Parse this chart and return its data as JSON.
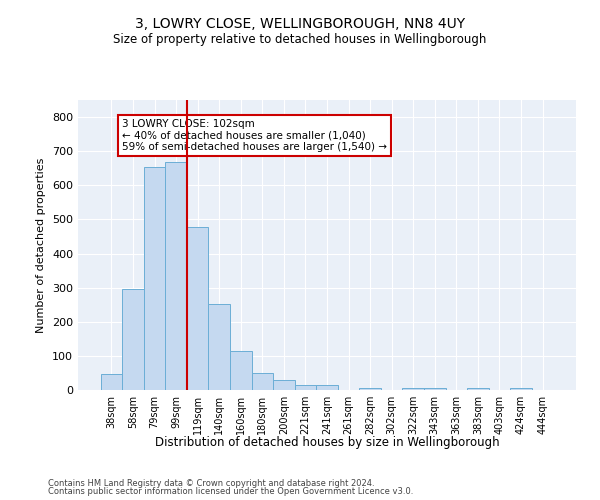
{
  "title": "3, LOWRY CLOSE, WELLINGBOROUGH, NN8 4UY",
  "subtitle": "Size of property relative to detached houses in Wellingborough",
  "xlabel": "Distribution of detached houses by size in Wellingborough",
  "ylabel": "Number of detached properties",
  "bar_labels": [
    "38sqm",
    "58sqm",
    "79sqm",
    "99sqm",
    "119sqm",
    "140sqm",
    "160sqm",
    "180sqm",
    "200sqm",
    "221sqm",
    "241sqm",
    "261sqm",
    "282sqm",
    "302sqm",
    "322sqm",
    "343sqm",
    "363sqm",
    "383sqm",
    "403sqm",
    "424sqm",
    "444sqm"
  ],
  "bar_values": [
    47,
    295,
    655,
    667,
    477,
    252,
    114,
    49,
    28,
    14,
    14,
    0,
    7,
    0,
    7,
    7,
    0,
    7,
    0,
    7,
    0
  ],
  "bar_color": "#c5d9f0",
  "bar_edge_color": "#6baed6",
  "vline_x_index": 3.5,
  "vline_color": "#cc0000",
  "annotation_text": "3 LOWRY CLOSE: 102sqm\n← 40% of detached houses are smaller (1,040)\n59% of semi-detached houses are larger (1,540) →",
  "annotation_box_color": "#cc0000",
  "ylim": [
    0,
    850
  ],
  "yticks": [
    0,
    100,
    200,
    300,
    400,
    500,
    600,
    700,
    800
  ],
  "fig_bg": "#ffffff",
  "plot_bg": "#eaf0f8",
  "grid_color": "#ffffff",
  "footer_line1": "Contains HM Land Registry data © Crown copyright and database right 2024.",
  "footer_line2": "Contains public sector information licensed under the Open Government Licence v3.0."
}
